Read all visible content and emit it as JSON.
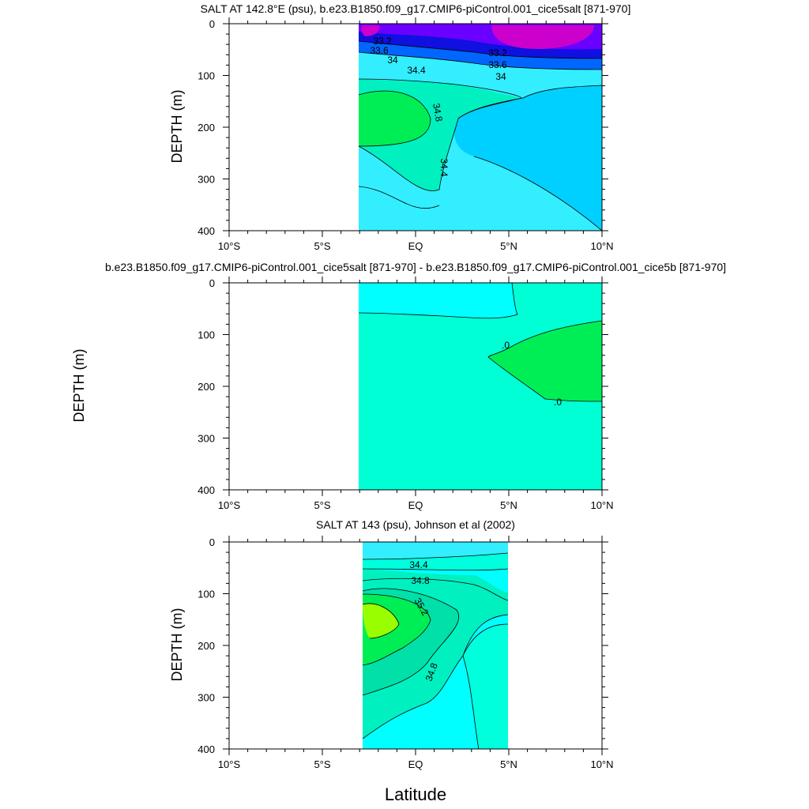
{
  "xlabel": "Latitude",
  "chart_data": [
    {
      "type": "heatmap",
      "title": "SALT AT 142.8°E (psu), b.e23.B1850.f09_g17.CMIP6-piControl.001_cice5salt [871-970]",
      "ylabel": "DEPTH (m)",
      "xlabel": "Latitude",
      "xlim": [
        -10,
        10
      ],
      "ylim": [
        400,
        0
      ],
      "xticks": [
        "10°S",
        "5°S",
        "EQ",
        "5°N",
        "10°N"
      ],
      "yticks": [
        "0",
        "100",
        "200",
        "300",
        "400"
      ],
      "data_lat_range": [
        -3,
        10
      ],
      "contour_labels": [
        "33.2",
        "33.6",
        "34",
        "34.4",
        "34.8",
        "33.2",
        "33.6",
        "34",
        "34.4"
      ],
      "colors": {
        "deep_salty_green": "#00ee55",
        "teal": "#00f0c0",
        "cyan_light": "#33eeff",
        "cyan": "#00d0ff",
        "blue": "#0066ff",
        "navy": "#1010e0",
        "violet": "#6a00ff",
        "magenta": "#cc00cc"
      }
    },
    {
      "type": "heatmap",
      "title": "b.e23.B1850.f09_g17.CMIP6-piControl.001_cice5salt [871-970] - b.e23.B1850.f09_g17.CMIP6-piControl.001_cice5b [871-970]",
      "ylabel": "DEPTH (m)",
      "xlabel": "Latitude",
      "xlim": [
        -10,
        10
      ],
      "ylim": [
        400,
        0
      ],
      "xticks": [
        "10°S",
        "5°S",
        "EQ",
        "5°N",
        "10°N"
      ],
      "yticks": [
        "0",
        "100",
        "200",
        "300",
        "400"
      ],
      "data_lat_range": [
        -3,
        10
      ],
      "contour_labels": [
        ".0",
        ".0"
      ],
      "colors": {
        "positive": "#00ee55",
        "near_zero": "#00ffd5",
        "negative": "#00ffff"
      }
    },
    {
      "type": "heatmap",
      "title": "SALT AT 143 (psu), Johnson et al (2002)",
      "ylabel": "DEPTH (m)",
      "xlabel": "Latitude",
      "xlim": [
        -10,
        10
      ],
      "ylim": [
        400,
        0
      ],
      "xticks": [
        "10°S",
        "5°S",
        "EQ",
        "5°N",
        "10°N"
      ],
      "yticks": [
        "0",
        "100",
        "200",
        "300",
        "400"
      ],
      "data_lat_range": [
        -2.75,
        5
      ],
      "contour_labels": [
        "34.4",
        "34.8",
        "35.2",
        "34.8"
      ],
      "colors": {
        "core": "#99ff00",
        "green": "#00ee55",
        "teal": "#00f0c0",
        "aqua": "#00ffdd",
        "cyan": "#00ffff",
        "cyan_light": "#33eeff"
      }
    }
  ]
}
